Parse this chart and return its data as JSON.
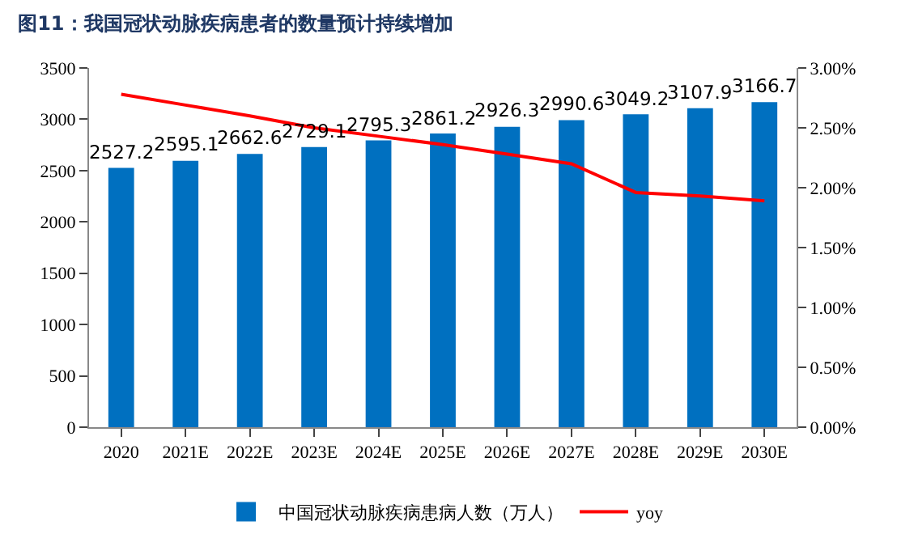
{
  "chart_data": {
    "type": "bar",
    "title": "图11：我国冠状动脉疾病患者的数量预计持续增加",
    "categories": [
      "2020",
      "2021E",
      "2022E",
      "2023E",
      "2024E",
      "2025E",
      "2026E",
      "2027E",
      "2028E",
      "2029E",
      "2030E"
    ],
    "series": [
      {
        "name": "中国冠状动脉疾病患病人数（万人）",
        "color": "#0070c0",
        "values": [
          2527.2,
          2595.1,
          2662.6,
          2729.1,
          2795.3,
          2861.2,
          2926.3,
          2990.6,
          3049.2,
          3107.9,
          3166.7
        ],
        "data_labels": true
      },
      {
        "name": "yoy",
        "type": "line",
        "axis": "y2",
        "color": "#ff0000",
        "marker": "none",
        "values": [
          2.78,
          2.69,
          2.6,
          2.5,
          2.43,
          2.36,
          2.28,
          2.2,
          1.96,
          1.93,
          1.89
        ]
      }
    ],
    "ylim": [
      0,
      3500
    ],
    "yticks": [
      0,
      500,
      1000,
      1500,
      2000,
      2500,
      3000,
      3500
    ],
    "y2lim": [
      0,
      3
    ],
    "y2ticks": [
      {
        "value": 0,
        "label": "0.00%"
      },
      {
        "value": 0.5,
        "label": "0.50%"
      },
      {
        "value": 1,
        "label": "1.00%"
      },
      {
        "value": 1.5,
        "label": "1.50%"
      },
      {
        "value": 2,
        "label": "2.00%"
      },
      {
        "value": 2.5,
        "label": "2.50%"
      },
      {
        "value": 3,
        "label": "3.00%"
      }
    ],
    "legend": "bottom"
  }
}
